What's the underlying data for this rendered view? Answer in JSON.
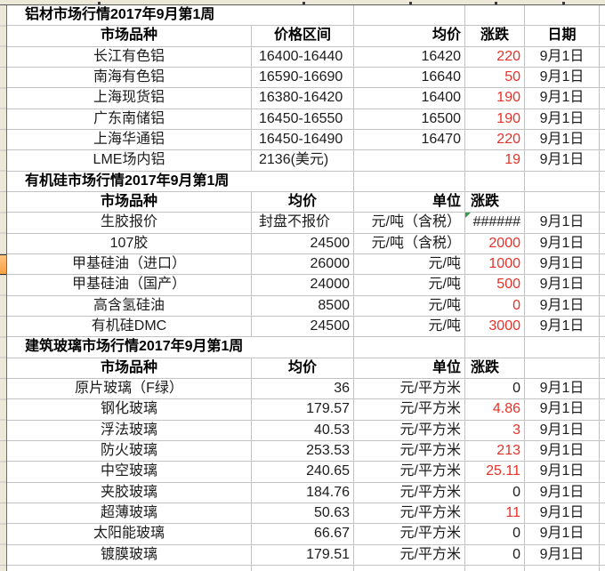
{
  "sheet": {
    "kind": "excel-spreadsheet-clip",
    "date_column_values": "9月1日"
  },
  "colors": {
    "change_red": "#e8312a",
    "grid_line": "#c3c3c3",
    "header_strip_bg": "#ece9d8",
    "active_row_marker_orange": "#f9a044",
    "error_triangle_green": "#2f9e44",
    "text": "#1c1c1c",
    "background": "#ffffff"
  },
  "sections": [
    {
      "title": "铝材市场行情2017年9月第1周",
      "header": [
        "市场品种",
        "价格区间",
        "均价",
        "涨跌",
        "日期"
      ],
      "header_align": [
        "center",
        "center",
        "right",
        "center",
        "center"
      ],
      "col_align": [
        "center",
        "left",
        "right",
        "right",
        "center"
      ],
      "rows": [
        {
          "cells": [
            "长江有色铝",
            "16400-16440",
            "16420",
            "220",
            "9月1日"
          ],
          "red": [
            3
          ]
        },
        {
          "cells": [
            "南海有色铝",
            "16590-16690",
            "16640",
            "50",
            "9月1日"
          ],
          "red": [
            3
          ]
        },
        {
          "cells": [
            "上海现货铝",
            "16380-16420",
            "16400",
            "190",
            "9月1日"
          ],
          "red": [
            3
          ]
        },
        {
          "cells": [
            "广东南储铝",
            "16450-16550",
            "16500",
            "190",
            "9月1日"
          ],
          "red": [
            3
          ]
        },
        {
          "cells": [
            "上海华通铝",
            "16450-16490",
            "16470",
            "220",
            "9月1日"
          ],
          "red": [
            3
          ]
        },
        {
          "cells": [
            "LME场内铝",
            "2136(美元)",
            "",
            "19",
            "9月1日"
          ],
          "red": [
            3
          ]
        }
      ]
    },
    {
      "title": "有机硅市场行情2017年9月第1周",
      "header": [
        "市场品种",
        "均价",
        "单位",
        "涨跌",
        ""
      ],
      "header_align": [
        "center",
        "center",
        "right",
        "left",
        "center"
      ],
      "col_align": [
        "center",
        "right",
        "right",
        "right",
        "center"
      ],
      "rows": [
        {
          "cells": [
            "生胶报价",
            "封盘不报价",
            "元/吨（含税）",
            "######",
            "9月1日"
          ],
          "red": [],
          "align_overrides": {
            "1": "left"
          },
          "error_marker_col": 3
        },
        {
          "cells": [
            "107胶",
            "24500",
            "元/吨（含税）",
            "2000",
            "9月1日"
          ],
          "red": [
            3
          ]
        },
        {
          "cells": [
            "甲基硅油（进口）",
            "26000",
            "元/吨",
            "1000",
            "9月1日"
          ],
          "red": [
            3
          ],
          "active_row": true
        },
        {
          "cells": [
            "甲基硅油（国产）",
            "24000",
            "元/吨",
            "500",
            "9月1日"
          ],
          "red": [
            3
          ]
        },
        {
          "cells": [
            "高含氢硅油",
            "8500",
            "元/吨",
            "0",
            "9月1日"
          ],
          "red": [
            3
          ]
        },
        {
          "cells": [
            "有机硅DMC",
            "24500",
            "元/吨",
            "3000",
            "9月1日"
          ],
          "red": [
            3
          ]
        }
      ]
    },
    {
      "title": "建筑玻璃市场行情2017年9月第1周",
      "header": [
        "市场品种",
        "均价",
        "单位",
        "涨跌",
        ""
      ],
      "header_align": [
        "center",
        "center",
        "right",
        "left",
        "center"
      ],
      "col_align": [
        "center",
        "right",
        "right",
        "right",
        "center"
      ],
      "rows": [
        {
          "cells": [
            "原片玻璃（F绿）",
            "36",
            "元/平方米",
            "0",
            "9月1日"
          ],
          "red": []
        },
        {
          "cells": [
            "钢化玻璃",
            "179.57",
            "元/平方米",
            "4.86",
            "9月1日"
          ],
          "red": [
            3
          ]
        },
        {
          "cells": [
            "浮法玻璃",
            "40.53",
            "元/平方米",
            "3",
            "9月1日"
          ],
          "red": [
            3
          ]
        },
        {
          "cells": [
            "防火玻璃",
            "253.53",
            "元/平方米",
            "213",
            "9月1日"
          ],
          "red": [
            3
          ]
        },
        {
          "cells": [
            "中空玻璃",
            "240.65",
            "元/平方米",
            "25.11",
            "9月1日"
          ],
          "red": [
            3
          ]
        },
        {
          "cells": [
            "夹胶玻璃",
            "184.76",
            "元/平方米",
            "0",
            "9月1日"
          ],
          "red": []
        },
        {
          "cells": [
            "超薄玻璃",
            "50.63",
            "元/平方米",
            "11",
            "9月1日"
          ],
          "red": [
            3
          ]
        },
        {
          "cells": [
            "太阳能玻璃",
            "66.67",
            "元/平方米",
            "0",
            "9月1日"
          ],
          "red": []
        },
        {
          "cells": [
            "镀膜玻璃",
            "179.51",
            "元/平方米",
            "0",
            "9月1日"
          ],
          "red": []
        }
      ]
    }
  ]
}
